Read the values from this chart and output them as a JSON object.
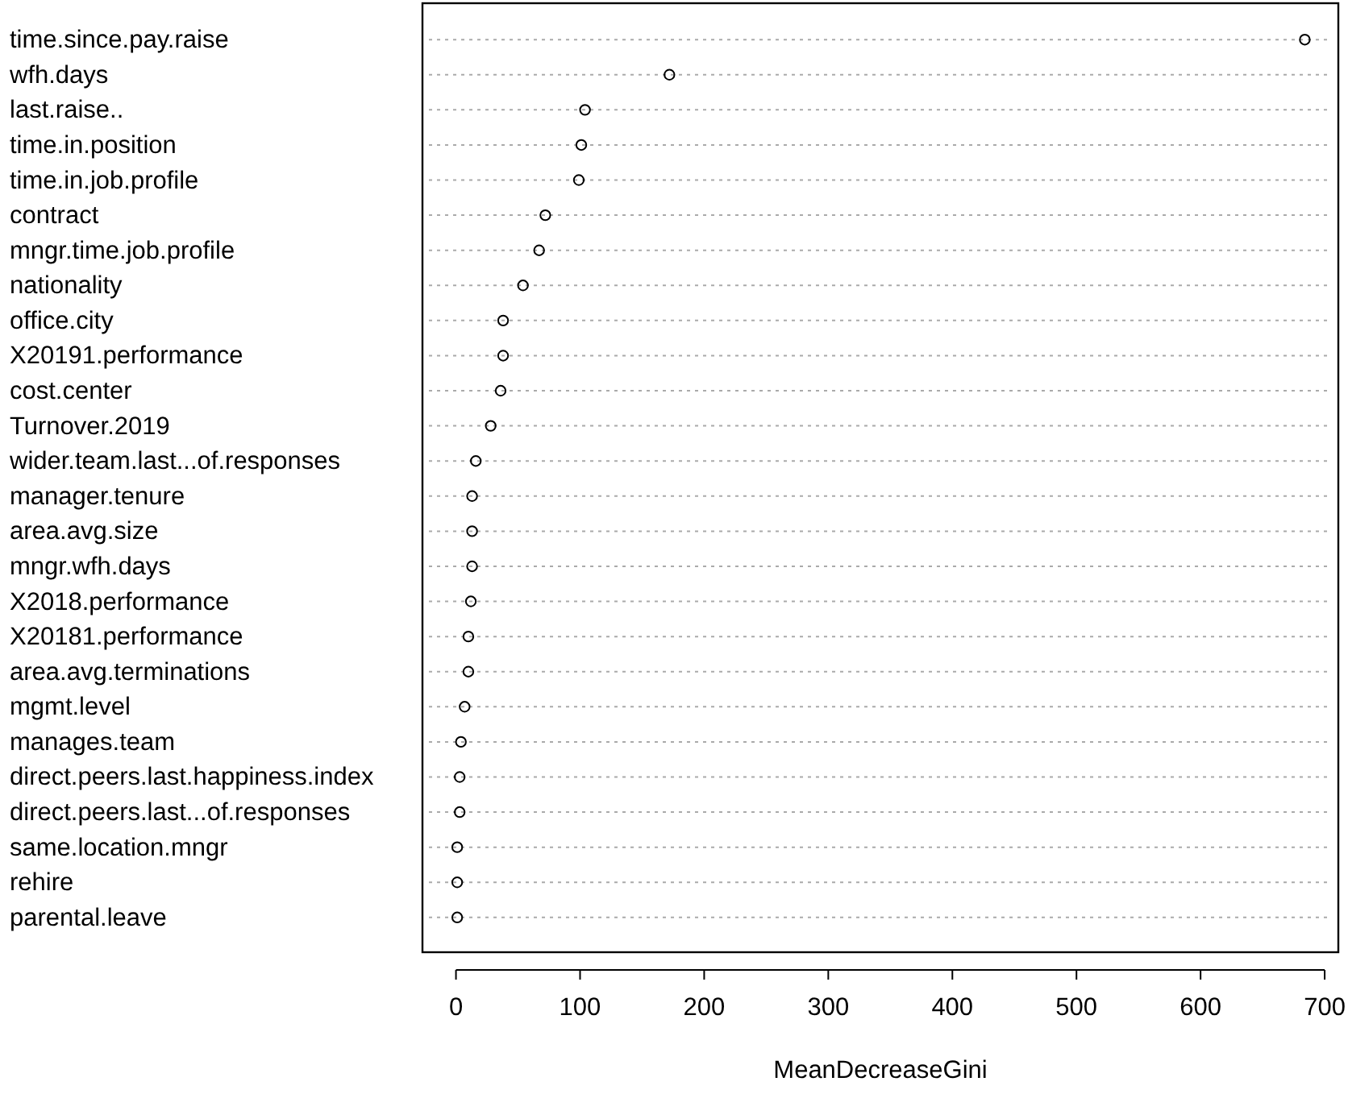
{
  "chart_data": {
    "type": "scatter",
    "orientation": "horizontal",
    "xlabel": "MeanDecreaseGini",
    "categories": [
      "time.since.pay.raise",
      "wfh.days",
      "last.raise..",
      "time.in.position",
      "time.in.job.profile",
      "contract",
      "mngr.time.job.profile",
      "nationality",
      "office.city",
      "X20191.performance",
      "cost.center",
      "Turnover.2019",
      "wider.team.last...of.responses",
      "manager.tenure",
      "area.avg.size",
      "mngr.wfh.days",
      "X2018.performance",
      "X20181.performance",
      "area.avg.terminations",
      "mgmt.level",
      "manages.team",
      "direct.peers.last.happiness.index",
      "direct.peers.last...of.responses",
      "same.location.mngr",
      "rehire",
      "parental.leave"
    ],
    "values": [
      684,
      172,
      104,
      101,
      99,
      72,
      67,
      54,
      38,
      38,
      36,
      28,
      16,
      13,
      13,
      13,
      12,
      10,
      10,
      7,
      4,
      3,
      3,
      1,
      1,
      1
    ],
    "color": "#000000",
    "marker": "circle",
    "grid": "y",
    "xlim": [
      -27,
      711
    ],
    "xticks": [
      0,
      100,
      200,
      300,
      400,
      500,
      600,
      700
    ]
  }
}
